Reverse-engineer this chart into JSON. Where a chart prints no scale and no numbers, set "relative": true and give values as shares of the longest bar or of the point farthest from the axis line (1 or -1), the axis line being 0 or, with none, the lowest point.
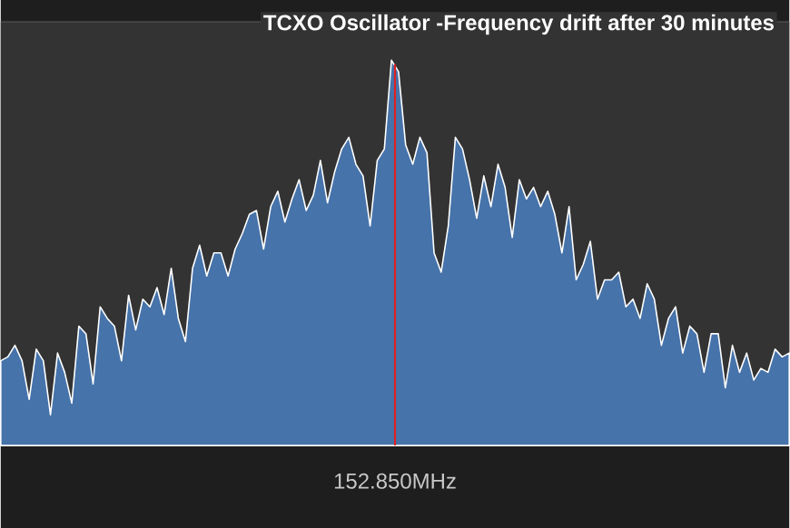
{
  "chart_data": {
    "type": "area",
    "title": "TCXO Oscillator -Frequency drift after 30 minutes",
    "relative": true,
    "categories": [
      null,
      null,
      null,
      null,
      null,
      null,
      null,
      null,
      null,
      null,
      null,
      null,
      null,
      null,
      null,
      null,
      null,
      null,
      null,
      null,
      null,
      null,
      null,
      null,
      null,
      null,
      null,
      null,
      null,
      null,
      null,
      null,
      null,
      null,
      null,
      null,
      null,
      null,
      null,
      null,
      null,
      null,
      null,
      null,
      null,
      null,
      null,
      null,
      null,
      null,
      null,
      null,
      null,
      null,
      null,
      null,
      null,
      null,
      null,
      null,
      null,
      null,
      null,
      null,
      null,
      null,
      null,
      null,
      null,
      null,
      null,
      null,
      null,
      null,
      null,
      null,
      null,
      null,
      null,
      null,
      null,
      null,
      null,
      null,
      null,
      null,
      null,
      null,
      null,
      null,
      null,
      null,
      null,
      null,
      null,
      null,
      null,
      null,
      null,
      null,
      null,
      null,
      null,
      null,
      null,
      null,
      null,
      null,
      null,
      null,
      null,
      null
    ],
    "series": [
      {
        "color": "#4673aa",
        "values": [
          0.22,
          0.23,
          0.26,
          0.22,
          0.12,
          0.25,
          0.22,
          0.08,
          0.24,
          0.19,
          0.11,
          0.31,
          0.29,
          0.16,
          0.36,
          0.33,
          0.31,
          0.22,
          0.39,
          0.3,
          0.38,
          0.36,
          0.41,
          0.34,
          0.46,
          0.33,
          0.27,
          0.46,
          0.52,
          0.44,
          0.5,
          0.5,
          0.44,
          0.51,
          0.55,
          0.6,
          0.61,
          0.51,
          0.62,
          0.66,
          0.58,
          0.64,
          0.69,
          0.61,
          0.65,
          0.74,
          0.63,
          0.71,
          0.77,
          0.8,
          0.73,
          0.7,
          0.57,
          0.74,
          0.77,
          1,
          0.97,
          0.78,
          0.73,
          0.8,
          0.76,
          0.5,
          0.45,
          0.57,
          0.8,
          0.77,
          0.69,
          0.59,
          0.7,
          0.62,
          0.73,
          0.67,
          0.54,
          0.69,
          0.64,
          0.67,
          0.62,
          0.66,
          0.6,
          0.5,
          0.62,
          0.43,
          0.47,
          0.53,
          0.38,
          0.43,
          0.43,
          0.45,
          0.36,
          0.38,
          0.33,
          0.42,
          0.38,
          0.26,
          0.33,
          0.36,
          0.24,
          0.31,
          0.29,
          0.19,
          0.29,
          0.29,
          0.15,
          0.26,
          0.19,
          0.24,
          0.17,
          0.2,
          0.19,
          0.25,
          0.23,
          0.24
        ]
      }
    ],
    "annotations": [
      "152.850MHz"
    ]
  }
}
